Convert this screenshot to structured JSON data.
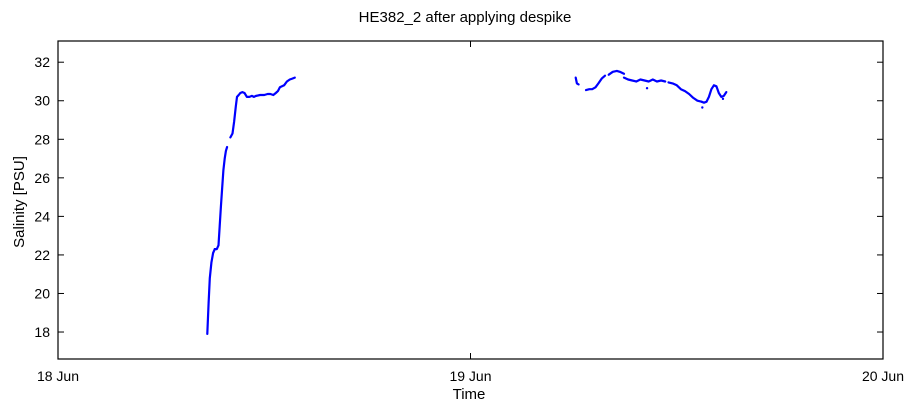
{
  "chart_data": {
    "type": "line",
    "title": "HE382_2 after applying despike",
    "xlabel": "Time",
    "ylabel": "Salinity [PSU]",
    "xlim": [
      0,
      2
    ],
    "ylim": [
      16.6,
      33.1
    ],
    "x_ticks": [
      {
        "value": 0,
        "label": "18 Jun"
      },
      {
        "value": 1,
        "label": "19 Jun"
      },
      {
        "value": 2,
        "label": "20 Jun"
      }
    ],
    "y_ticks": [
      18,
      20,
      22,
      24,
      26,
      28,
      30,
      32
    ],
    "grid": false,
    "legend": "none",
    "series": [
      {
        "color": "#0000ff",
        "segments": [
          {
            "x": [
              0.362,
              0.365,
              0.368,
              0.372,
              0.376,
              0.38
            ],
            "y": [
              17.9,
              19.5,
              20.8,
              21.6,
              22.1,
              22.3
            ]
          },
          {
            "x": [
              0.38,
              0.385,
              0.389,
              0.392,
              0.395,
              0.398,
              0.401,
              0.404,
              0.407,
              0.41
            ],
            "y": [
              22.3,
              22.3,
              22.5,
              23.5,
              24.5,
              25.5,
              26.4,
              27.0,
              27.4,
              27.6
            ]
          },
          {
            "x": [
              0.418,
              0.423,
              0.427,
              0.431,
              0.434,
              0.438,
              0.442,
              0.447,
              0.452,
              0.458,
              0.464,
              0.47,
              0.475,
              0.48
            ],
            "y": [
              28.1,
              28.3,
              28.9,
              29.7,
              30.2,
              30.3,
              30.4,
              30.45,
              30.4,
              30.2,
              30.2,
              30.25,
              30.2,
              30.25
            ]
          },
          {
            "x": [
              0.48,
              0.49,
              0.5,
              0.508,
              0.515,
              0.522,
              0.528,
              0.533,
              0.538,
              0.543,
              0.548,
              0.555,
              0.562,
              0.568,
              0.574
            ],
            "y": [
              30.25,
              30.3,
              30.3,
              30.35,
              30.35,
              30.3,
              30.4,
              30.5,
              30.7,
              30.75,
              30.8,
              31.0,
              31.1,
              31.15,
              31.2
            ]
          },
          {
            "x": [
              1.255,
              1.258,
              1.262
            ],
            "y": [
              31.2,
              30.9,
              30.85
            ]
          },
          {
            "x": [
              1.28,
              1.288,
              1.295,
              1.303,
              1.31,
              1.318,
              1.326
            ],
            "y": [
              30.55,
              30.6,
              30.6,
              30.7,
              30.9,
              31.15,
              31.3
            ]
          },
          {
            "x": [
              1.335,
              1.345,
              1.355,
              1.362,
              1.372
            ],
            "y": [
              31.35,
              31.5,
              31.55,
              31.5,
              31.4
            ]
          },
          {
            "x": [
              1.372,
              1.382,
              1.392,
              1.402,
              1.412,
              1.422,
              1.432,
              1.442,
              1.452,
              1.462,
              1.472
            ],
            "y": [
              31.2,
              31.1,
              31.05,
              31.0,
              31.1,
              31.05,
              31.0,
              31.1,
              31.0,
              31.05,
              31.0
            ]
          },
          {
            "x": [
              1.48,
              1.49,
              1.5,
              1.51,
              1.52,
              1.53,
              1.54,
              1.55,
              1.56
            ],
            "y": [
              30.95,
              30.9,
              30.8,
              30.6,
              30.5,
              30.35,
              30.15,
              30.0,
              29.95
            ]
          },
          {
            "x": [
              1.56,
              1.566,
              1.572,
              1.578,
              1.584,
              1.59,
              1.596,
              1.602,
              1.608,
              1.614,
              1.62
            ],
            "y": [
              29.95,
              29.9,
              29.95,
              30.2,
              30.6,
              30.8,
              30.75,
              30.4,
              30.2,
              30.25,
              30.45
            ]
          }
        ],
        "dots": [
          {
            "x": 1.428,
            "y": 30.65
          },
          {
            "x": 1.562,
            "y": 29.65
          },
          {
            "x": 1.612,
            "y": 30.1
          }
        ]
      }
    ]
  }
}
